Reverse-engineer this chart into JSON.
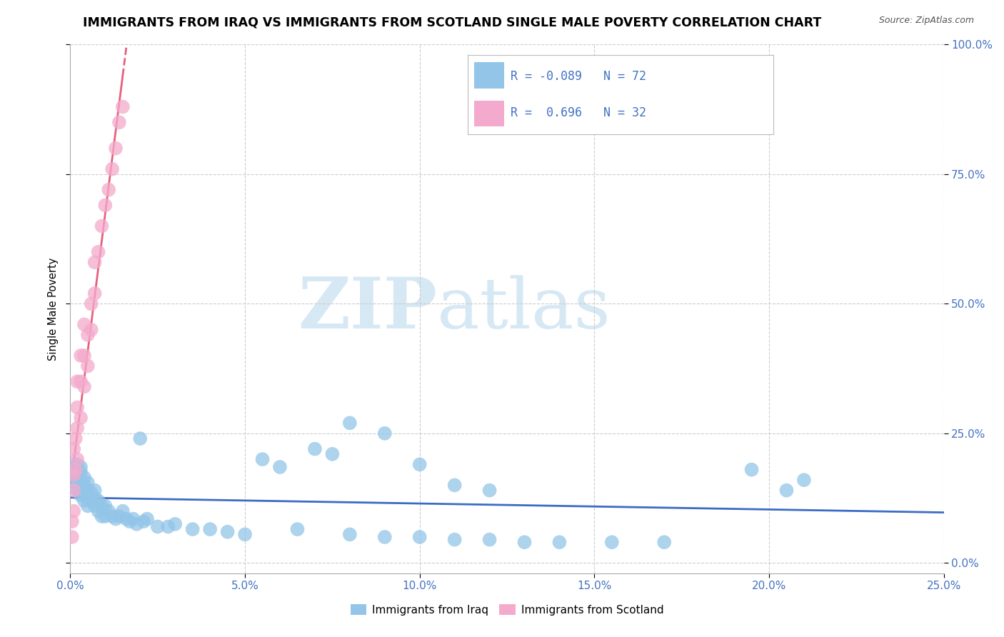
{
  "title": "IMMIGRANTS FROM IRAQ VS IMMIGRANTS FROM SCOTLAND SINGLE MALE POVERTY CORRELATION CHART",
  "source": "Source: ZipAtlas.com",
  "ylabel": "Single Male Poverty",
  "iraq_R": -0.089,
  "iraq_N": 72,
  "scotland_R": 0.696,
  "scotland_N": 32,
  "iraq_color": "#92C5E8",
  "scotland_color": "#F4AACC",
  "iraq_line_color": "#3B6CC4",
  "scotland_line_color": "#E8607A",
  "xlim": [
    0.0,
    0.25
  ],
  "ylim": [
    -0.02,
    1.0
  ],
  "iraq_x": [
    0.001,
    0.001,
    0.001,
    0.002,
    0.002,
    0.002,
    0.002,
    0.003,
    0.003,
    0.003,
    0.003,
    0.003,
    0.004,
    0.004,
    0.004,
    0.004,
    0.005,
    0.005,
    0.005,
    0.005,
    0.006,
    0.006,
    0.007,
    0.007,
    0.007,
    0.008,
    0.008,
    0.009,
    0.009,
    0.01,
    0.01,
    0.011,
    0.012,
    0.013,
    0.014,
    0.015,
    0.016,
    0.017,
    0.018,
    0.019,
    0.02,
    0.021,
    0.022,
    0.025,
    0.028,
    0.03,
    0.035,
    0.04,
    0.045,
    0.05,
    0.055,
    0.06,
    0.065,
    0.07,
    0.075,
    0.08,
    0.09,
    0.1,
    0.11,
    0.12,
    0.13,
    0.14,
    0.155,
    0.17,
    0.08,
    0.09,
    0.1,
    0.11,
    0.12,
    0.21,
    0.205,
    0.195
  ],
  "iraq_y": [
    0.145,
    0.17,
    0.19,
    0.14,
    0.155,
    0.17,
    0.19,
    0.13,
    0.145,
    0.16,
    0.175,
    0.185,
    0.12,
    0.135,
    0.15,
    0.165,
    0.11,
    0.125,
    0.14,
    0.155,
    0.12,
    0.135,
    0.11,
    0.125,
    0.14,
    0.1,
    0.12,
    0.09,
    0.11,
    0.09,
    0.11,
    0.1,
    0.09,
    0.085,
    0.09,
    0.1,
    0.085,
    0.08,
    0.085,
    0.075,
    0.24,
    0.08,
    0.085,
    0.07,
    0.07,
    0.075,
    0.065,
    0.065,
    0.06,
    0.055,
    0.2,
    0.185,
    0.065,
    0.22,
    0.21,
    0.055,
    0.05,
    0.05,
    0.045,
    0.045,
    0.04,
    0.04,
    0.04,
    0.04,
    0.27,
    0.25,
    0.19,
    0.15,
    0.14,
    0.16,
    0.14,
    0.18
  ],
  "scotland_x": [
    0.0005,
    0.0005,
    0.001,
    0.001,
    0.001,
    0.001,
    0.0015,
    0.0015,
    0.002,
    0.002,
    0.002,
    0.002,
    0.003,
    0.003,
    0.003,
    0.004,
    0.004,
    0.004,
    0.005,
    0.005,
    0.006,
    0.006,
    0.007,
    0.007,
    0.008,
    0.009,
    0.01,
    0.011,
    0.012,
    0.013,
    0.014,
    0.015
  ],
  "scotland_y": [
    0.05,
    0.08,
    0.1,
    0.14,
    0.17,
    0.22,
    0.18,
    0.24,
    0.2,
    0.26,
    0.3,
    0.35,
    0.28,
    0.35,
    0.4,
    0.34,
    0.4,
    0.46,
    0.38,
    0.44,
    0.45,
    0.5,
    0.52,
    0.58,
    0.6,
    0.65,
    0.69,
    0.72,
    0.76,
    0.8,
    0.85,
    0.88
  ]
}
